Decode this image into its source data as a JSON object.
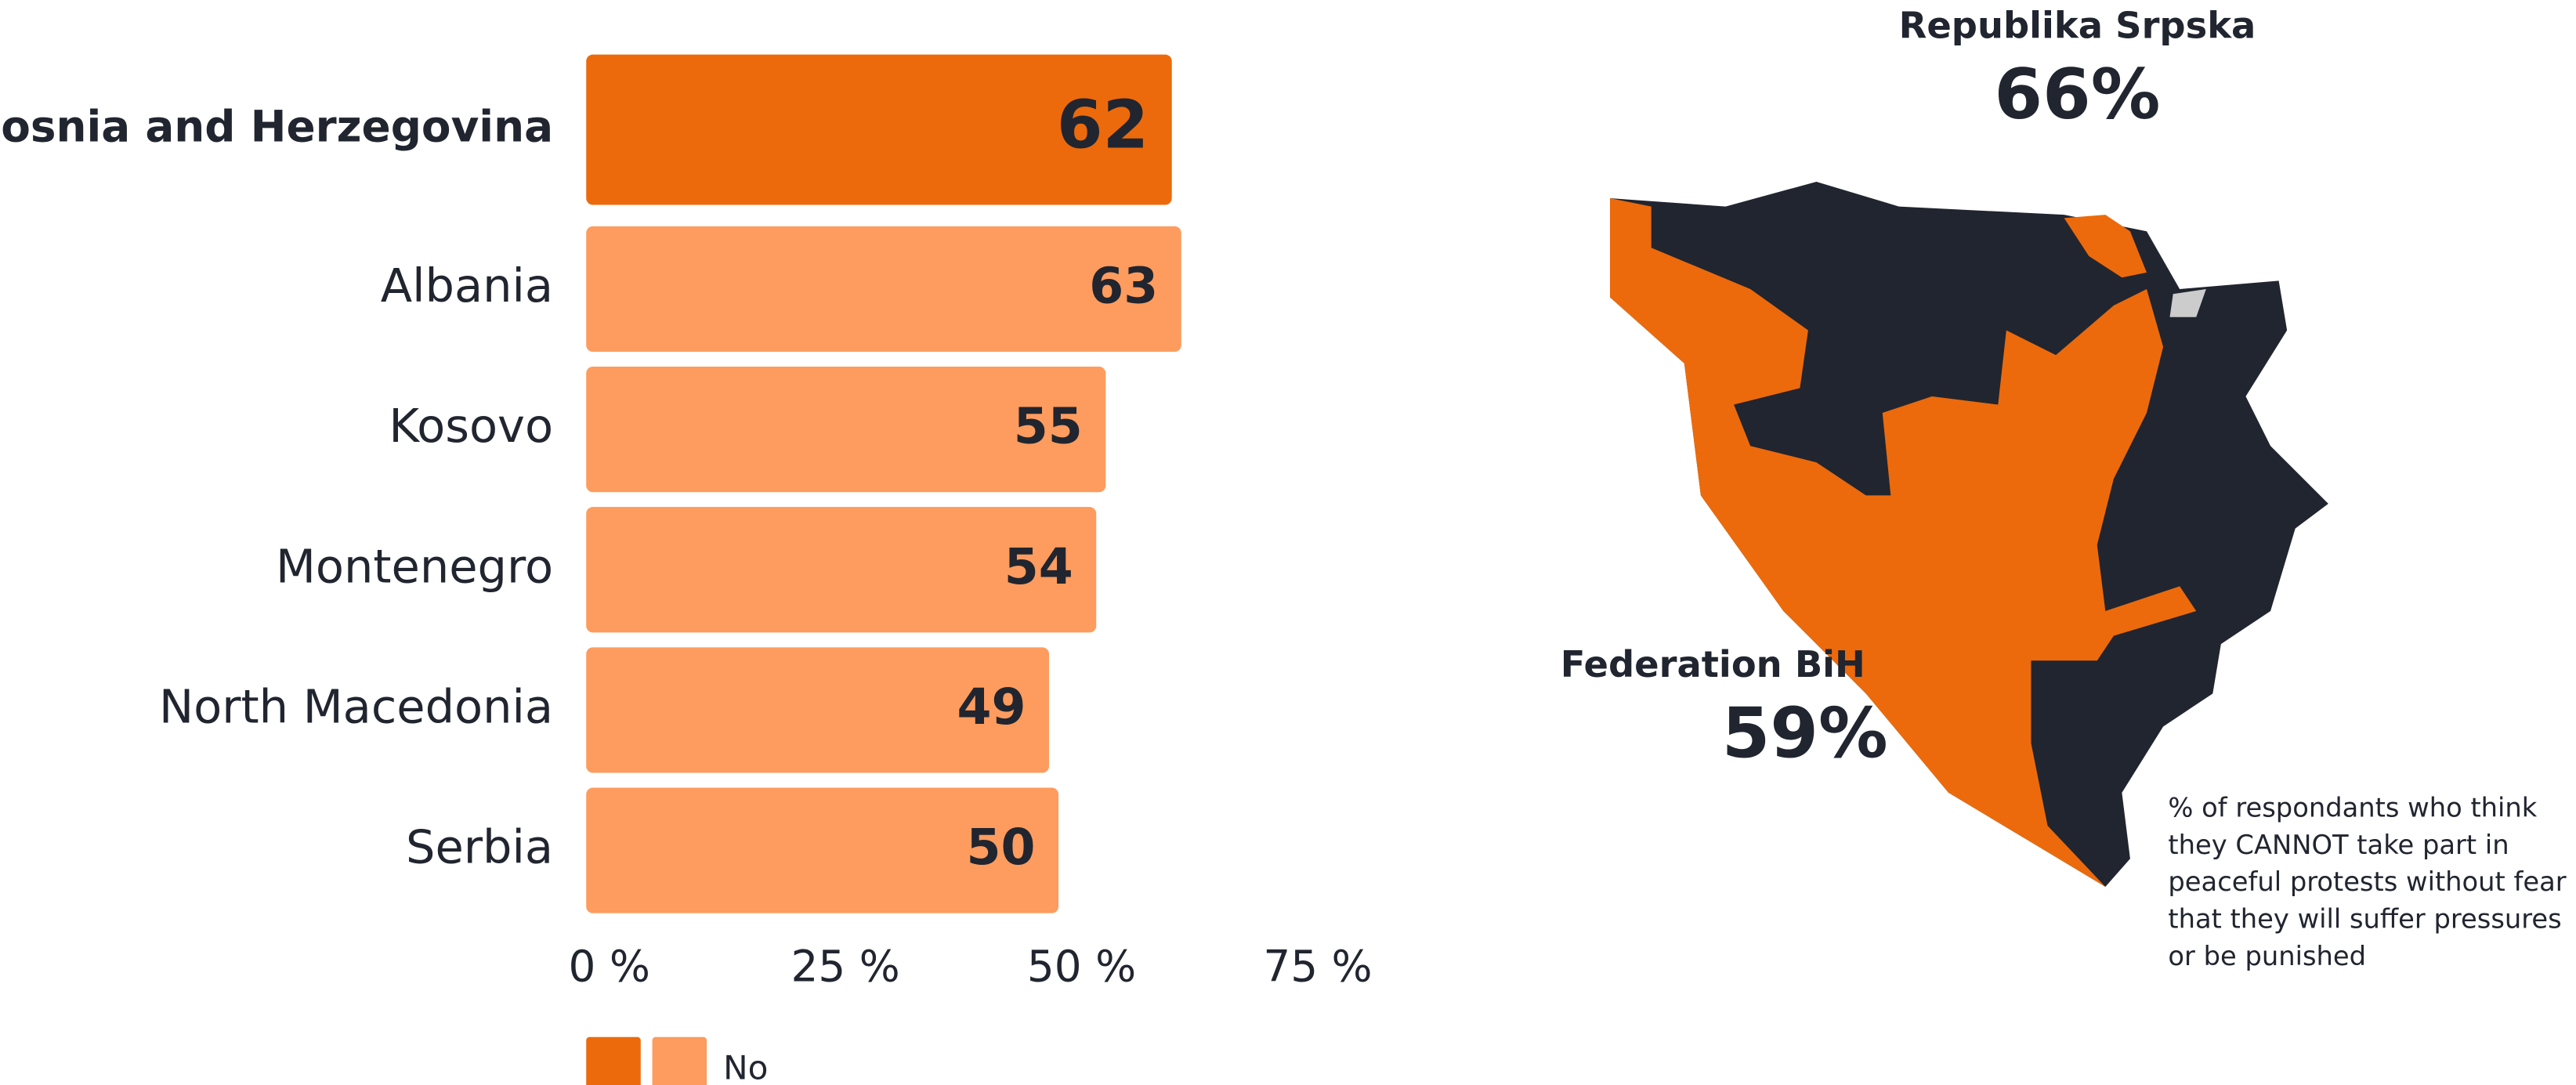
{
  "chart_data": {
    "type": "bar",
    "orientation": "horizontal",
    "categories": [
      "Bosnia and Herzegovina",
      "Albania",
      "Kosovo",
      "Montenegro",
      "North Macedonia",
      "Serbia"
    ],
    "series": [
      {
        "name": "No",
        "colors": [
          "#ec6a0c",
          "#fd9c5e",
          "#fd9c5e",
          "#fd9c5e",
          "#fd9c5e",
          "#fd9c5e"
        ],
        "values": [
          62,
          63,
          55,
          54,
          49,
          50
        ]
      }
    ],
    "xlim": [
      0,
      75
    ],
    "xticks": [
      {
        "value": 0,
        "label": "0 %"
      },
      {
        "value": 25,
        "label": "25 %"
      },
      {
        "value": 50,
        "label": "50 %"
      },
      {
        "value": 75,
        "label": "75 %"
      }
    ],
    "legend_colors": [
      "#ec6a0c",
      "#fd9c5e"
    ]
  },
  "map": {
    "regions": [
      {
        "name": "Republika Srpska",
        "value": "66%"
      },
      {
        "name": "Federation BiH",
        "value": "59%"
      }
    ],
    "note": [
      "% of respondants who think",
      "they CANNOT take part in",
      "peaceful protests without fear",
      "that they will suffer pressures",
      "or be punished"
    ]
  }
}
